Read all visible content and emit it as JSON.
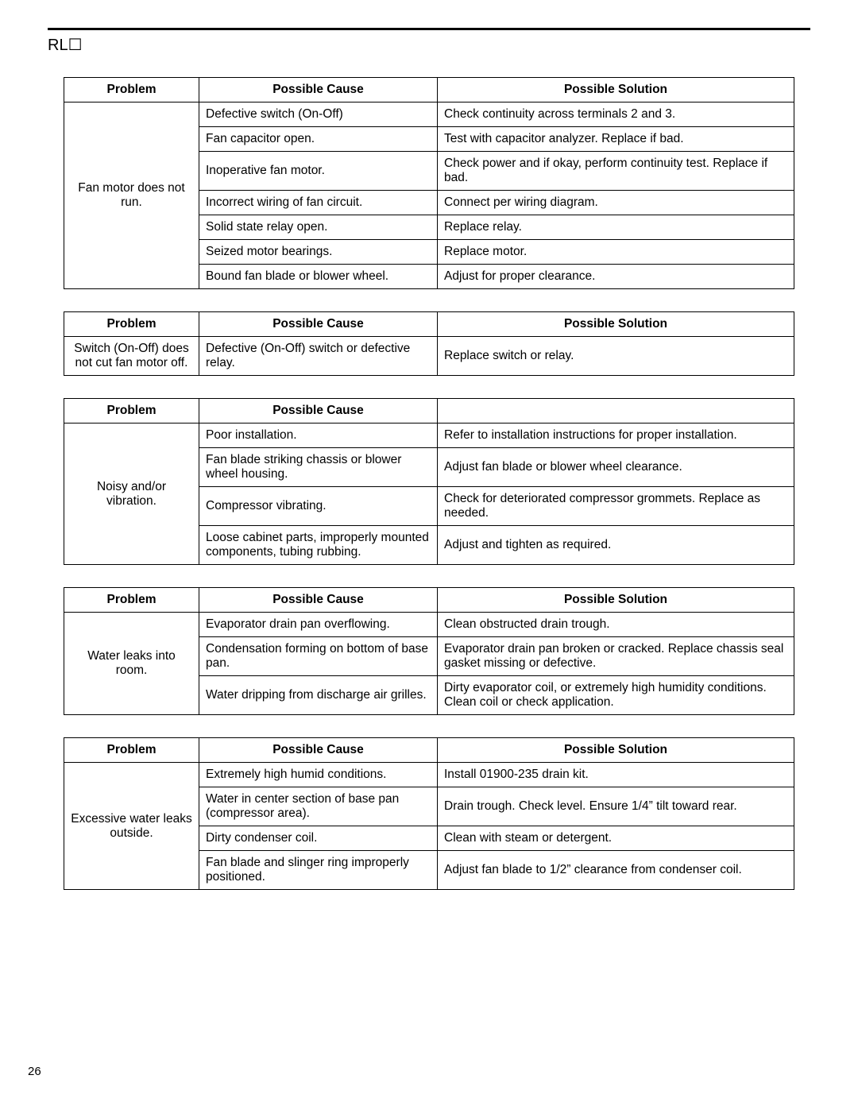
{
  "header_label": "RL☐",
  "page_number": "26",
  "columns": {
    "problem": "Problem",
    "cause": "Possible Cause",
    "solution": "Possible Solution"
  },
  "tables": [
    {
      "show_solution_header": true,
      "problem": "Fan motor does not run.",
      "rows": [
        {
          "cause": "Defective switch (On-Off)",
          "solution": "Check continuity across terminals 2 and 3."
        },
        {
          "cause": "Fan capacitor open.",
          "solution": "Test with capacitor analyzer. Replace if bad."
        },
        {
          "cause": "Inoperative fan motor.",
          "solution": "Check power and if okay, perform continuity test. Replace if bad."
        },
        {
          "cause": "Incorrect wiring of fan circuit.",
          "solution": "Connect per wiring diagram."
        },
        {
          "cause": "Solid state relay open.",
          "solution": "Replace relay."
        },
        {
          "cause": "Seized motor bearings.",
          "solution": "Replace motor."
        },
        {
          "cause": "Bound fan blade or blower wheel.",
          "solution": "Adjust for proper clearance."
        }
      ]
    },
    {
      "show_solution_header": true,
      "problem": "Switch (On-Off) does not cut fan motor off.",
      "rows": [
        {
          "cause": "Defective (On-Off) switch or defective relay.",
          "solution": "Replace switch or relay."
        }
      ]
    },
    {
      "show_solution_header": false,
      "problem": "Noisy and/or vibration.",
      "rows": [
        {
          "cause": "Poor installation.",
          "solution": "Refer to installation instructions for proper installation."
        },
        {
          "cause": "Fan blade striking chassis or blower wheel housing.",
          "solution": "Adjust fan blade or blower wheel clearance."
        },
        {
          "cause": "Compressor vibrating.",
          "solution": "Check for deteriorated compressor grommets. Replace as needed."
        },
        {
          "cause": "Loose cabinet parts, improperly mounted components, tubing rubbing.",
          "solution": "Adjust and tighten as required."
        }
      ]
    },
    {
      "show_solution_header": true,
      "problem": "Water leaks into room.",
      "rows": [
        {
          "cause": "Evaporator drain pan overflowing.",
          "solution": "Clean obstructed drain trough."
        },
        {
          "cause": "Condensation forming on bottom of base pan.",
          "solution": "Evaporator drain pan broken or cracked. Replace chassis seal gasket missing or defective."
        },
        {
          "cause": "Water dripping from discharge air grilles.",
          "solution": "Dirty evaporator coil, or extremely high humidity conditions. Clean coil or check application."
        }
      ]
    },
    {
      "show_solution_header": true,
      "problem": "Excessive water leaks outside.",
      "rows": [
        {
          "cause": "Extremely high humid conditions.",
          "solution": "Install 01900-235 drain kit."
        },
        {
          "cause": "Water in center section of base pan (compressor area).",
          "solution": "Drain trough. Check level. Ensure 1/4” tilt toward rear."
        },
        {
          "cause": "Dirty condenser coil.",
          "solution": "Clean with steam or detergent."
        },
        {
          "cause": "Fan blade and slinger ring improperly positioned.",
          "solution": "Adjust fan blade to 1/2” clearance from condenser coil."
        }
      ]
    }
  ]
}
